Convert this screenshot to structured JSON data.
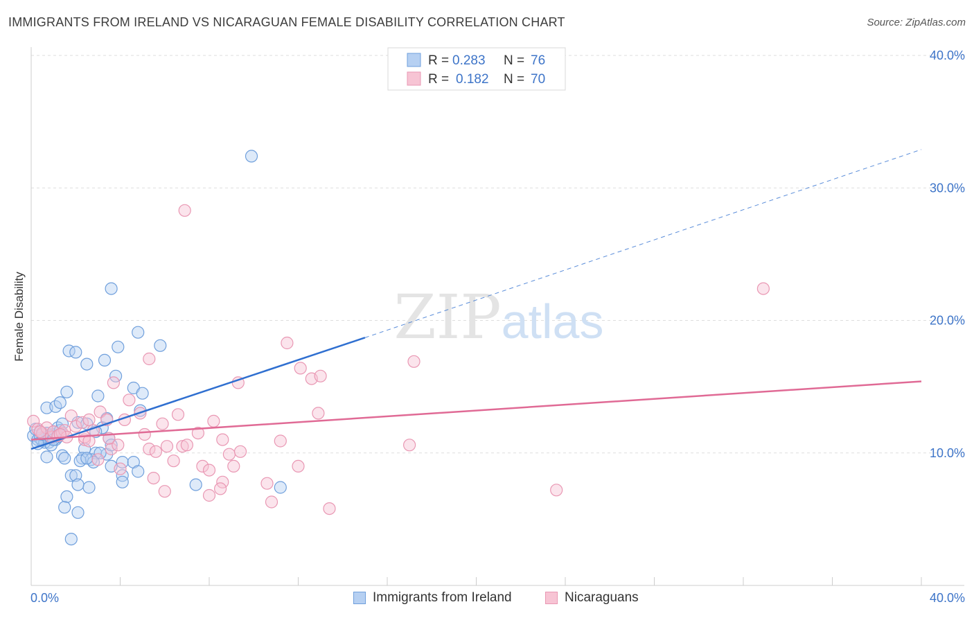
{
  "chart_data": {
    "type": "scatter",
    "title": "IMMIGRANTS FROM IRELAND VS NICARAGUAN FEMALE DISABILITY CORRELATION CHART",
    "source": "Source: ZipAtlas.com",
    "xlabel": "",
    "ylabel": "Female Disability",
    "xlim": [
      0,
      40
    ],
    "ylim": [
      0,
      40
    ],
    "x_tick_labels": [
      "0.0%",
      "40.0%"
    ],
    "y_ticks": [
      10,
      20,
      30,
      40
    ],
    "y_tick_labels": [
      "10.0%",
      "20.0%",
      "30.0%",
      "40.0%"
    ],
    "grid": true,
    "watermark": "ZIPatlas",
    "colors": {
      "ireland_fill": "#b6d0f2",
      "ireland_stroke": "#6f9fdc",
      "ireland_line": "#2f6fd0",
      "nicaragua_fill": "#f7c4d4",
      "nicaragua_stroke": "#e997b3",
      "nicaragua_line": "#e06a95",
      "axis_text": "#3d74c8"
    },
    "legend": {
      "rows": [
        {
          "r_label": "R =",
          "r_value": "0.283",
          "n_label": "N =",
          "n_value": "76"
        },
        {
          "r_label": "R =",
          "r_value": "0.182",
          "n_label": "N =",
          "n_value": "70"
        }
      ]
    },
    "series": [
      {
        "name": "Immigrants from Ireland",
        "points": [
          [
            0.1,
            11.3
          ],
          [
            0.2,
            11.8
          ],
          [
            0.3,
            11.0
          ],
          [
            0.4,
            11.6
          ],
          [
            0.5,
            10.9
          ],
          [
            0.6,
            11.2
          ],
          [
            0.7,
            11.5
          ],
          [
            0.8,
            10.8
          ],
          [
            0.9,
            11.1
          ],
          [
            1.0,
            11.4
          ],
          [
            1.1,
            11.0
          ],
          [
            1.2,
            11.9
          ],
          [
            0.4,
            11.1
          ],
          [
            0.6,
            10.8
          ],
          [
            0.8,
            11.3
          ],
          [
            1.0,
            11.6
          ],
          [
            1.3,
            11.7
          ],
          [
            1.4,
            12.2
          ],
          [
            0.7,
            13.4
          ],
          [
            1.1,
            13.5
          ],
          [
            1.3,
            13.8
          ],
          [
            1.6,
            14.6
          ],
          [
            2.1,
            12.3
          ],
          [
            1.4,
            9.8
          ],
          [
            0.7,
            9.7
          ],
          [
            1.5,
            9.6
          ],
          [
            1.8,
            8.3
          ],
          [
            2.0,
            8.3
          ],
          [
            2.1,
            7.6
          ],
          [
            2.6,
            7.4
          ],
          [
            1.6,
            6.7
          ],
          [
            1.5,
            5.9
          ],
          [
            2.1,
            5.5
          ],
          [
            1.8,
            3.5
          ],
          [
            1.7,
            17.7
          ],
          [
            2.0,
            17.6
          ],
          [
            2.5,
            16.7
          ],
          [
            3.3,
            17.0
          ],
          [
            3.9,
            18.0
          ],
          [
            4.8,
            19.1
          ],
          [
            5.8,
            18.1
          ],
          [
            3.6,
            22.4
          ],
          [
            3.8,
            15.8
          ],
          [
            4.6,
            14.9
          ],
          [
            5.0,
            14.5
          ],
          [
            4.9,
            13.2
          ],
          [
            3.0,
            14.3
          ],
          [
            3.4,
            12.6
          ],
          [
            3.2,
            11.9
          ],
          [
            2.5,
            12.2
          ],
          [
            2.9,
            11.6
          ],
          [
            3.5,
            11.1
          ],
          [
            2.4,
            10.3
          ],
          [
            2.9,
            10.0
          ],
          [
            3.4,
            9.9
          ],
          [
            3.6,
            10.6
          ],
          [
            3.1,
            10.0
          ],
          [
            2.3,
            9.6
          ],
          [
            2.7,
            9.5
          ],
          [
            2.8,
            9.3
          ],
          [
            3.6,
            9.0
          ],
          [
            4.1,
            9.3
          ],
          [
            4.6,
            9.3
          ],
          [
            4.1,
            8.3
          ],
          [
            4.1,
            7.8
          ],
          [
            4.8,
            8.6
          ],
          [
            2.2,
            9.4
          ],
          [
            2.5,
            9.6
          ],
          [
            1.2,
            11.2
          ],
          [
            0.9,
            10.6
          ],
          [
            7.4,
            7.6
          ],
          [
            11.2,
            7.4
          ],
          [
            9.9,
            32.4
          ],
          [
            0.3,
            10.7
          ],
          [
            1.0,
            11.0
          ],
          [
            0.5,
            11.4
          ]
        ]
      },
      {
        "name": "Nicaraguans",
        "points": [
          [
            0.1,
            12.4
          ],
          [
            0.3,
            11.8
          ],
          [
            0.5,
            11.5
          ],
          [
            0.7,
            11.9
          ],
          [
            0.9,
            11.2
          ],
          [
            1.0,
            11.6
          ],
          [
            1.2,
            11.3
          ],
          [
            1.4,
            11.5
          ],
          [
            1.5,
            11.7
          ],
          [
            1.6,
            11.2
          ],
          [
            1.8,
            12.8
          ],
          [
            2.0,
            12.0
          ],
          [
            2.3,
            12.3
          ],
          [
            2.4,
            11.0
          ],
          [
            2.6,
            12.5
          ],
          [
            2.8,
            11.7
          ],
          [
            3.1,
            13.1
          ],
          [
            3.4,
            12.5
          ],
          [
            3.6,
            10.3
          ],
          [
            3.9,
            10.6
          ],
          [
            4.2,
            12.5
          ],
          [
            4.4,
            14.0
          ],
          [
            3.7,
            15.3
          ],
          [
            4.9,
            13.0
          ],
          [
            5.1,
            11.4
          ],
          [
            5.3,
            10.3
          ],
          [
            5.6,
            10.1
          ],
          [
            5.9,
            12.2
          ],
          [
            6.1,
            10.5
          ],
          [
            6.4,
            9.4
          ],
          [
            6.6,
            12.9
          ],
          [
            6.8,
            10.5
          ],
          [
            7.0,
            10.6
          ],
          [
            7.5,
            11.5
          ],
          [
            7.7,
            9.0
          ],
          [
            8.0,
            8.7
          ],
          [
            8.2,
            12.4
          ],
          [
            8.6,
            11.0
          ],
          [
            8.9,
            9.9
          ],
          [
            9.3,
            15.3
          ],
          [
            9.4,
            10.1
          ],
          [
            9.1,
            9.0
          ],
          [
            8.6,
            7.8
          ],
          [
            8.5,
            7.3
          ],
          [
            8.0,
            6.8
          ],
          [
            10.6,
            7.7
          ],
          [
            10.8,
            6.3
          ],
          [
            11.2,
            10.9
          ],
          [
            12.0,
            9.0
          ],
          [
            11.5,
            18.3
          ],
          [
            12.1,
            16.4
          ],
          [
            12.6,
            15.6
          ],
          [
            13.0,
            15.8
          ],
          [
            12.9,
            13.0
          ],
          [
            13.4,
            5.8
          ],
          [
            6.0,
            7.1
          ],
          [
            5.5,
            8.1
          ],
          [
            4.0,
            8.8
          ],
          [
            3.0,
            9.5
          ],
          [
            2.4,
            11.2
          ],
          [
            17.0,
            10.6
          ],
          [
            17.2,
            16.9
          ],
          [
            23.6,
            7.2
          ],
          [
            32.9,
            22.4
          ],
          [
            5.3,
            17.1
          ],
          [
            6.9,
            28.3
          ],
          [
            1.3,
            11.4
          ],
          [
            2.6,
            10.9
          ],
          [
            3.5,
            11.1
          ],
          [
            0.4,
            11.6
          ]
        ]
      }
    ],
    "trend_lines": [
      {
        "series": "Immigrants from Ireland",
        "solid": [
          [
            0,
            10.3
          ],
          [
            15,
            18.7
          ]
        ],
        "dashed": [
          [
            15,
            18.7
          ],
          [
            40,
            32.9
          ]
        ]
      },
      {
        "series": "Nicaraguans",
        "solid": [
          [
            0,
            11.0
          ],
          [
            40,
            15.4
          ]
        ]
      }
    ]
  }
}
